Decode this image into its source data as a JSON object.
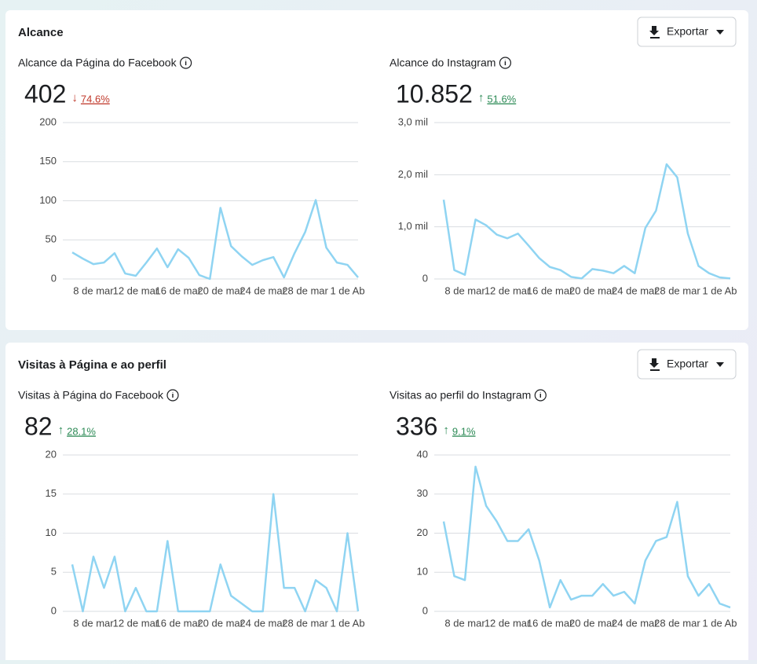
{
  "sections": [
    {
      "title": "Alcance",
      "button": "Exportar",
      "charts": [
        {
          "type": "line",
          "title": "Alcance da Página do Facebook",
          "total": "402",
          "trend_arrow": "↓",
          "change": "74.6%",
          "change_color": "#c0392b",
          "color": "#8fd4f2",
          "categories": [
            null,
            null,
            "8 de mar",
            null,
            null,
            null,
            "12 de mar",
            null,
            null,
            null,
            "16 de mar",
            null,
            null,
            null,
            "20 de mar",
            null,
            null,
            null,
            "24 de mar",
            null,
            null,
            null,
            "28 de mar",
            null,
            null,
            null,
            "1 de Ab",
            null
          ],
          "values": [
            34,
            26,
            19,
            21,
            33,
            7,
            4,
            21,
            39,
            15,
            38,
            27,
            5,
            0,
            91,
            42,
            29,
            18,
            24,
            28,
            2,
            33,
            60,
            101,
            40,
            21,
            18,
            2
          ],
          "ylim": [
            0,
            200
          ],
          "yticks": [
            0,
            50,
            100,
            150,
            200
          ]
        },
        {
          "type": "line",
          "title": "Alcance do Instagram",
          "total": "10.852",
          "trend_arrow": "↑",
          "change": "51.6%",
          "change_color": "#2e8b57",
          "color": "#8fd4f2",
          "categories": [
            null,
            null,
            "8 de mar",
            null,
            null,
            null,
            "12 de mar",
            null,
            null,
            null,
            "16 de mar",
            null,
            null,
            null,
            "20 de mar",
            null,
            null,
            null,
            "24 de mar",
            null,
            null,
            null,
            "28 de mar",
            null,
            null,
            null,
            "1 de Ab",
            null
          ],
          "values": [
            1520,
            170,
            80,
            1140,
            1030,
            850,
            780,
            870,
            640,
            400,
            230,
            170,
            40,
            10,
            190,
            160,
            110,
            250,
            110,
            980,
            1310,
            2200,
            1950,
            870,
            250,
            110,
            30,
            10
          ],
          "ylim": [
            0,
            3000
          ],
          "yticks": [
            0,
            {
              "value": 1000,
              "label": "1,0 mil"
            },
            {
              "value": 2000,
              "label": "2,0 mil"
            },
            {
              "value": 3000,
              "label": "3,0 mil"
            }
          ]
        }
      ]
    },
    {
      "title": "Visitas à Página e ao perfil",
      "button": "Exportar",
      "charts": [
        {
          "type": "line",
          "title": "Visitas à Página do Facebook",
          "total": "82",
          "trend_arrow": "↑",
          "change": "28.1%",
          "change_color": "#2e8b57",
          "color": "#8fd4f2",
          "categories": [
            null,
            null,
            "8 de mar",
            null,
            null,
            null,
            "12 de mar",
            null,
            null,
            null,
            "16 de mar",
            null,
            null,
            null,
            "20 de mar",
            null,
            null,
            null,
            "24 de mar",
            null,
            null,
            null,
            "28 de mar",
            null,
            null,
            null,
            "1 de Ab",
            null
          ],
          "values": [
            6,
            0,
            7,
            3,
            7,
            0,
            3,
            0,
            0,
            9,
            0,
            0,
            0,
            0,
            6,
            2,
            1,
            0,
            0,
            15,
            3,
            3,
            0,
            4,
            3,
            0,
            10,
            0
          ],
          "ylim": [
            0,
            20
          ],
          "yticks": [
            0,
            5,
            10,
            15,
            20
          ]
        },
        {
          "type": "line",
          "title": "Visitas ao perfil do Instagram",
          "total": "336",
          "trend_arrow": "↑",
          "change": "9.1%",
          "change_color": "#2e8b57",
          "color": "#8fd4f2",
          "categories": [
            null,
            null,
            "8 de mar",
            null,
            null,
            null,
            "12 de mar",
            null,
            null,
            null,
            "16 de mar",
            null,
            null,
            null,
            "20 de mar",
            null,
            null,
            null,
            "24 de mar",
            null,
            null,
            null,
            "28 de mar",
            null,
            null,
            null,
            "1 de Ab",
            null
          ],
          "values": [
            23,
            9,
            8,
            37,
            27,
            23,
            18,
            18,
            21,
            13,
            1,
            8,
            3,
            4,
            4,
            7,
            4,
            5,
            2,
            13,
            18,
            19,
            28,
            9,
            4,
            7,
            2,
            1
          ],
          "ylim": [
            0,
            40
          ],
          "yticks": [
            0,
            10,
            20,
            30,
            40
          ]
        }
      ]
    }
  ]
}
